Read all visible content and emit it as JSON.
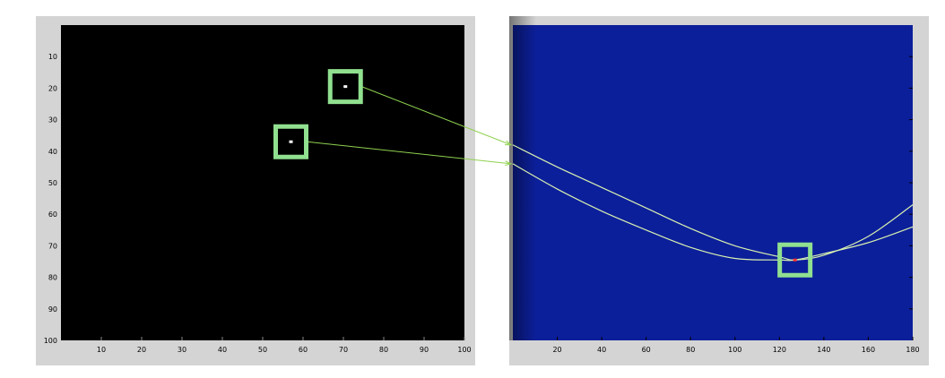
{
  "chart_data": [
    {
      "type": "heatmap",
      "title": "",
      "xlabel": "",
      "ylabel": "",
      "xlim": [
        0,
        100
      ],
      "ylim": [
        0,
        100
      ],
      "y_reversed": true,
      "xticks": [
        10,
        20,
        30,
        40,
        50,
        60,
        70,
        80,
        90,
        100
      ],
      "yticks": [
        10,
        20,
        30,
        40,
        50,
        60,
        70,
        80,
        90,
        100
      ],
      "background": "#000000",
      "points": [
        {
          "x": 70.5,
          "y": 19.5
        },
        {
          "x": 57,
          "y": 37
        }
      ]
    },
    {
      "type": "heatmap",
      "title": "",
      "xlabel": "",
      "ylabel": "",
      "xlim": [
        0,
        180
      ],
      "ylim": [
        0,
        100
      ],
      "y_reversed": true,
      "xticks": [
        20,
        40,
        60,
        80,
        100,
        120,
        140,
        160,
        180
      ],
      "background": "#0c1f9a",
      "curves": [
        {
          "x": [
            0,
            20,
            40,
            60,
            80,
            100,
            120,
            127,
            140,
            160,
            180
          ],
          "y": [
            38,
            45,
            51.5,
            58,
            64.5,
            70,
            73.5,
            74.5,
            73,
            67,
            57
          ]
        },
        {
          "x": [
            0,
            20,
            40,
            60,
            80,
            100,
            120,
            127,
            140,
            160,
            180
          ],
          "y": [
            44,
            52,
            59,
            65,
            70.5,
            74,
            74.5,
            74.5,
            72.5,
            69,
            64
          ]
        }
      ],
      "intersection": {
        "x": 127,
        "y": 74.5
      }
    }
  ],
  "colors": {
    "highlight_box": "#90e090",
    "arrow": "#8fd14f",
    "curve": "#d8f0b0",
    "point": "#ffffff",
    "frame": "#d4d4d4"
  }
}
